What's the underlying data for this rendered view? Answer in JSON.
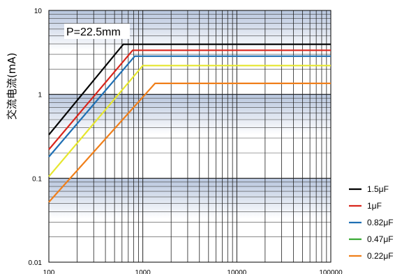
{
  "chart_data": {
    "type": "line",
    "title": "",
    "xlabel": "",
    "ylabel": "交流电流(mA)",
    "x_scale": "log",
    "y_scale": "log",
    "xlim": [
      100,
      100000
    ],
    "ylim": [
      0.01,
      10
    ],
    "x_ticks": [
      100,
      1000,
      10000,
      100000
    ],
    "x_tick_labels": [
      "100",
      "1000",
      "10000",
      "100000"
    ],
    "y_ticks": [
      10,
      1,
      0.1,
      0.01
    ],
    "y_tick_labels": [
      "10",
      "1",
      "0.1",
      "0.01"
    ],
    "grid": true,
    "legend_position": "right",
    "annotation": "P=22.5mm",
    "series": [
      {
        "name": "1.5μF",
        "color": "#000000",
        "x": [
          100,
          620,
          100000
        ],
        "y": [
          0.33,
          3.95,
          3.95
        ]
      },
      {
        "name": "1μF",
        "color": "#d9261c",
        "x": [
          100,
          780,
          100000
        ],
        "y": [
          0.22,
          3.35,
          3.35
        ]
      },
      {
        "name": "0.82μF",
        "color": "#1f6fb3",
        "x": [
          100,
          820,
          100000
        ],
        "y": [
          0.18,
          2.85,
          2.85
        ]
      },
      {
        "name": "0.47μF",
        "color": "#e6e62e",
        "legend_color": "#3aaa35",
        "x": [
          100,
          1000,
          100000
        ],
        "y": [
          0.105,
          2.2,
          2.2
        ]
      },
      {
        "name": "0.22μF",
        "color": "#f07f1a",
        "x": [
          100,
          1350,
          100000
        ],
        "y": [
          0.052,
          1.35,
          1.35
        ]
      }
    ]
  }
}
